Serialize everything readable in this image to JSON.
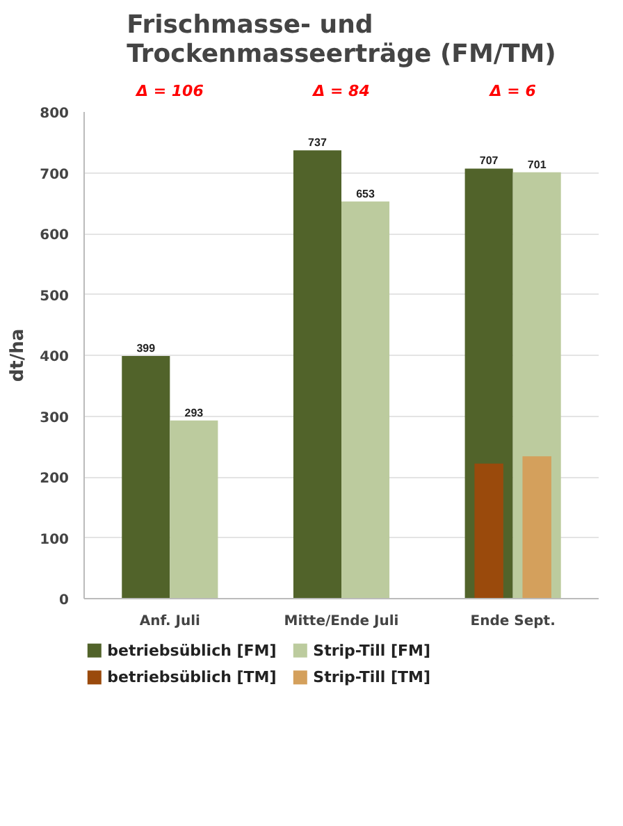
{
  "chart_data": {
    "type": "bar",
    "title": "Frischmasse- und\nTrockenmasseerträge (FM/TM)",
    "ylabel": "dt/ha",
    "categories": [
      "Anf. Juli",
      "Mitte/Ende Juli",
      "Ende Sept."
    ],
    "series": [
      {
        "name": "betriebsüblich [FM]",
        "color": "#51632a",
        "values": [
          399,
          737,
          707
        ],
        "value_labels": [
          "399",
          "737",
          "707"
        ]
      },
      {
        "name": "Strip-Till [FM]",
        "color": "#bccb9e",
        "values": [
          293,
          653,
          701
        ],
        "value_labels": [
          "293",
          "653",
          "701"
        ]
      },
      {
        "name": "betriebsüblich [TM]",
        "color": "#9a4a0c",
        "values": [
          null,
          null,
          222
        ]
      },
      {
        "name": "Strip-Till [TM]",
        "color": "#d4a05c",
        "values": [
          null,
          null,
          234
        ]
      }
    ],
    "annotations": [
      "Δ = 106",
      "Δ = 84",
      "Δ = 6"
    ],
    "ylim": [
      0,
      800
    ],
    "yticks": [
      0,
      100,
      200,
      300,
      400,
      500,
      600,
      700,
      800
    ],
    "grid": "y",
    "legend": "bottom"
  }
}
